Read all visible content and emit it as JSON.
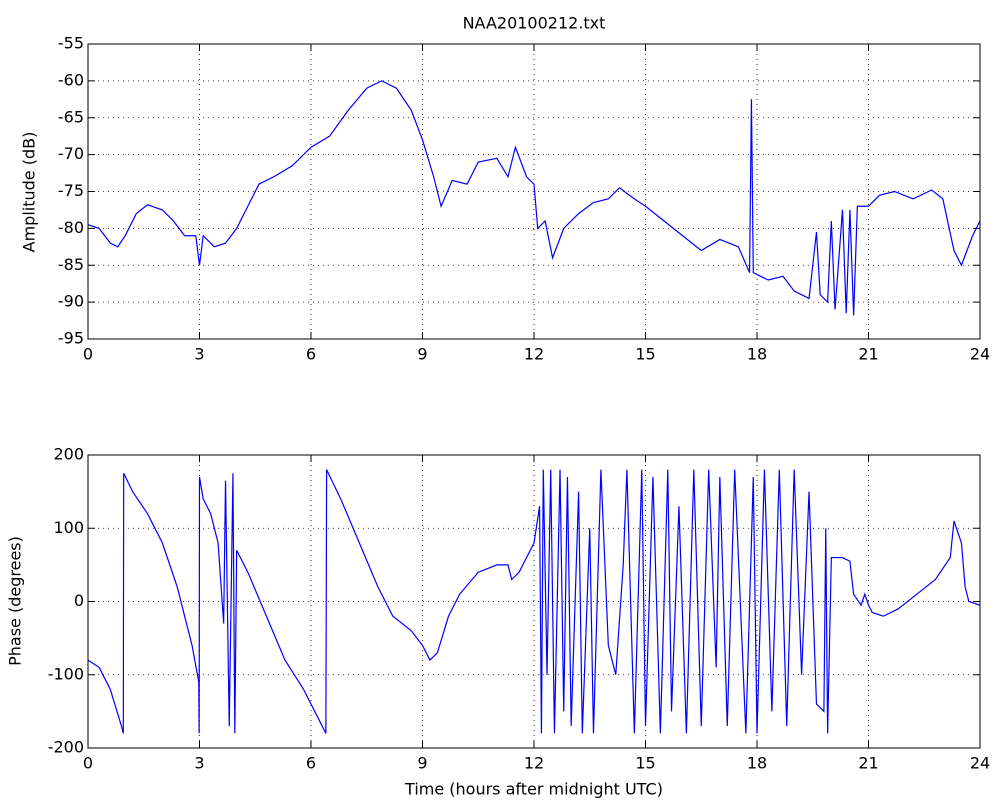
{
  "chart_data": [
    {
      "type": "line",
      "title": "NAA20100212.txt",
      "y_label": "Amplitude (dB)",
      "color": "#0000ff",
      "grid": true,
      "xlim": [
        0,
        24
      ],
      "xticks": [
        0,
        3,
        6,
        9,
        12,
        15,
        18,
        21,
        24
      ],
      "ylim": [
        -95,
        -55
      ],
      "yticks": [
        -95,
        -90,
        -85,
        -80,
        -75,
        -70,
        -65,
        -60,
        -55
      ],
      "x": [
        0,
        0.3,
        0.6,
        0.8,
        1.0,
        1.3,
        1.6,
        2.0,
        2.3,
        2.6,
        2.9,
        3.0,
        3.1,
        3.4,
        3.7,
        4.0,
        4.3,
        4.6,
        5.0,
        5.5,
        6.0,
        6.5,
        7.0,
        7.5,
        7.9,
        8.3,
        8.7,
        9.0,
        9.3,
        9.5,
        9.8,
        10.2,
        10.5,
        11.0,
        11.3,
        11.5,
        11.8,
        12.0,
        12.1,
        12.3,
        12.5,
        12.8,
        13.2,
        13.6,
        14.0,
        14.3,
        14.7,
        15.0,
        15.5,
        16.0,
        16.5,
        17.0,
        17.5,
        17.8,
        17.85,
        17.9,
        18.3,
        18.7,
        19.0,
        19.4,
        19.6,
        19.7,
        19.9,
        20.0,
        20.1,
        20.3,
        20.4,
        20.5,
        20.6,
        20.7,
        21.0,
        21.3,
        21.7,
        22.2,
        22.7,
        23.0,
        23.3,
        23.5,
        23.8,
        24
      ],
      "values": [
        -79.5,
        -80,
        -82,
        -82.5,
        -81,
        -78,
        -76.8,
        -77.5,
        -79,
        -81,
        -81,
        -85,
        -81,
        -82.5,
        -82,
        -80,
        -77,
        -74,
        -73,
        -71.5,
        -69,
        -67.5,
        -64,
        -61,
        -60,
        -61,
        -64,
        -68,
        -73,
        -77,
        -73.5,
        -74,
        -71,
        -70.5,
        -73,
        -69,
        -73,
        -74,
        -80,
        -79,
        -84,
        -80,
        -78,
        -76.5,
        -76,
        -74.5,
        -76,
        -77,
        -79,
        -81,
        -83,
        -81.5,
        -82.5,
        -86,
        -62.5,
        -86,
        -87,
        -86.5,
        -88.5,
        -89.5,
        -80.5,
        -89,
        -90,
        -79,
        -91,
        -77.5,
        -91.5,
        -77.5,
        -91.8,
        -77,
        -77,
        -75.5,
        -75,
        -76,
        -74.8,
        -76,
        -83,
        -85,
        -81,
        -79
      ]
    },
    {
      "type": "line",
      "x_label": "Time (hours after midnight UTC)",
      "y_label": "Phase (degrees)",
      "color": "#0000ff",
      "grid": true,
      "xlim": [
        0,
        24
      ],
      "xticks": [
        0,
        3,
        6,
        9,
        12,
        15,
        18,
        21,
        24
      ],
      "ylim": [
        -200,
        200
      ],
      "yticks": [
        -200,
        -100,
        0,
        100,
        200
      ],
      "x": [
        0,
        0.3,
        0.6,
        0.9,
        0.95,
        0.96,
        1.2,
        1.6,
        2.0,
        2.4,
        2.8,
        2.98,
        2.99,
        3.0,
        3.1,
        3.3,
        3.5,
        3.65,
        3.7,
        3.8,
        3.9,
        3.95,
        4.0,
        4.3,
        4.8,
        5.3,
        5.8,
        6.2,
        6.4,
        6.42,
        6.8,
        7.3,
        7.8,
        8.2,
        8.7,
        9.0,
        9.2,
        9.4,
        9.7,
        10.0,
        10.5,
        11.0,
        11.3,
        11.4,
        11.6,
        12.0,
        12.15,
        12.2,
        12.25,
        12.35,
        12.45,
        12.55,
        12.7,
        12.8,
        12.9,
        13.0,
        13.2,
        13.3,
        13.5,
        13.6,
        13.8,
        14.0,
        14.2,
        14.4,
        14.5,
        14.7,
        14.9,
        15.0,
        15.2,
        15.4,
        15.6,
        15.7,
        15.9,
        16.1,
        16.3,
        16.5,
        16.7,
        16.9,
        17.0,
        17.2,
        17.4,
        17.7,
        17.9,
        18.0,
        18.2,
        18.4,
        18.6,
        18.8,
        19.0,
        19.2,
        19.4,
        19.6,
        19.8,
        19.85,
        19.9,
        20.0,
        20.3,
        20.5,
        20.6,
        20.8,
        20.9,
        21.0,
        21.1,
        21.4,
        21.8,
        22.3,
        22.8,
        23.2,
        23.3,
        23.5,
        23.6,
        23.7,
        24
      ],
      "values": [
        -80,
        -90,
        -120,
        -170,
        -180,
        175,
        150,
        120,
        80,
        20,
        -60,
        -110,
        -180,
        170,
        140,
        120,
        80,
        -30,
        165,
        -170,
        175,
        -180,
        70,
        40,
        -20,
        -80,
        -120,
        -160,
        -180,
        180,
        140,
        80,
        20,
        -20,
        -40,
        -60,
        -80,
        -70,
        -20,
        10,
        40,
        50,
        50,
        30,
        40,
        80,
        130,
        -180,
        180,
        -100,
        180,
        -180,
        180,
        -150,
        170,
        -170,
        150,
        -180,
        100,
        -180,
        180,
        -60,
        -100,
        50,
        180,
        -180,
        180,
        -170,
        170,
        -180,
        180,
        -150,
        130,
        -180,
        180,
        -170,
        180,
        -90,
        170,
        -170,
        180,
        -180,
        170,
        -180,
        180,
        -150,
        180,
        -170,
        180,
        -100,
        150,
        -140,
        -150,
        100,
        -180,
        60,
        60,
        55,
        10,
        -5,
        10,
        -5,
        -15,
        -20,
        -10,
        10,
        30,
        60,
        110,
        80,
        20,
        0,
        -5
      ]
    }
  ]
}
